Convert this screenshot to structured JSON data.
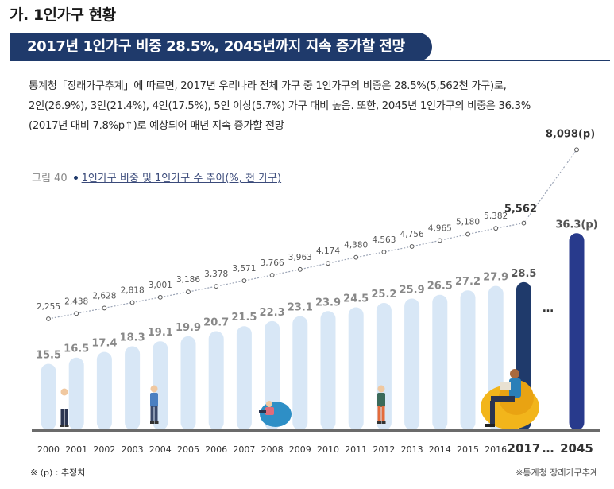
{
  "header": {
    "section_title": "가. 1인가구 현황",
    "banner": "2017년 1인가구 비중 28.5%, 2045년까지 지속 증가할 전망"
  },
  "body": {
    "lines": [
      "통계청「장래가구추계」에 따르면, 2017년 우리나라 전체 가구 중 1인가구의 비중은 28.5%(5,562천 가구)로,",
      "2인(26.9%), 3인(21.4%), 4인(17.5%), 5인 이상(5.7%) 가구 대비 높음. 또한, 2045년 1인가구의 비중은 36.3%",
      "(2017년 대비 7.8%p↑)로 예상되어 매년 지속 증가할 전망"
    ]
  },
  "figure": {
    "number": "그림 40",
    "title": "1인가구 비중 및 1인가구 수 추이(%, 천 가구)"
  },
  "chart_data": {
    "type": "bar",
    "title": "1인가구 비중 및 1인가구 수 추이(%, 천 가구)",
    "categories": [
      "2000",
      "2001",
      "2002",
      "2003",
      "2004",
      "2005",
      "2006",
      "2007",
      "2008",
      "2009",
      "2010",
      "2011",
      "2012",
      "2013",
      "2014",
      "2015",
      "2016",
      "2017",
      "…",
      "2045"
    ],
    "series": [
      {
        "name": "1인가구 비중(%)",
        "type": "bar",
        "values": [
          15.5,
          16.5,
          17.4,
          18.3,
          19.1,
          19.9,
          20.7,
          21.5,
          22.3,
          23.1,
          23.9,
          24.5,
          25.2,
          25.9,
          26.5,
          27.2,
          27.9,
          28.5,
          null,
          36.3
        ],
        "labels": [
          "15.5",
          "16.5",
          "17.4",
          "18.3",
          "19.1",
          "19.9",
          "20.7",
          "21.5",
          "22.3",
          "23.1",
          "23.9",
          "24.5",
          "25.2",
          "25.9",
          "26.5",
          "27.2",
          "27.9",
          "28.5",
          "…",
          "36.3(p)"
        ]
      },
      {
        "name": "1인가구 수(천 가구)",
        "type": "line",
        "values": [
          2255,
          2438,
          2628,
          2818,
          3001,
          3186,
          3378,
          3571,
          3766,
          3963,
          4174,
          4380,
          4563,
          4756,
          4965,
          5180,
          5382,
          5562,
          null,
          8098
        ],
        "labels": [
          "2,255",
          "2,438",
          "2,628",
          "2,818",
          "3,001",
          "3,186",
          "3,378",
          "3,571",
          "3,766",
          "3,963",
          "4,174",
          "4,380",
          "4,563",
          "4,756",
          "4,965",
          "5,180",
          "5,382",
          "5,562",
          "",
          "8,098(p)"
        ]
      }
    ],
    "highlight_categories": [
      "2017",
      "2045"
    ],
    "colors": {
      "bar": "#d8e7f6",
      "bar_2017": "#1f3a6b",
      "bar_2045": "#283a8c",
      "line": "#9aa3b5",
      "marker": "#ffffff",
      "base": "#6b6b6b",
      "bar_label": "#888888",
      "bar_label_highlight": "#555555"
    }
  },
  "footnote": "※ (p) : 추정치",
  "source": "※통계청 장래가구추계"
}
